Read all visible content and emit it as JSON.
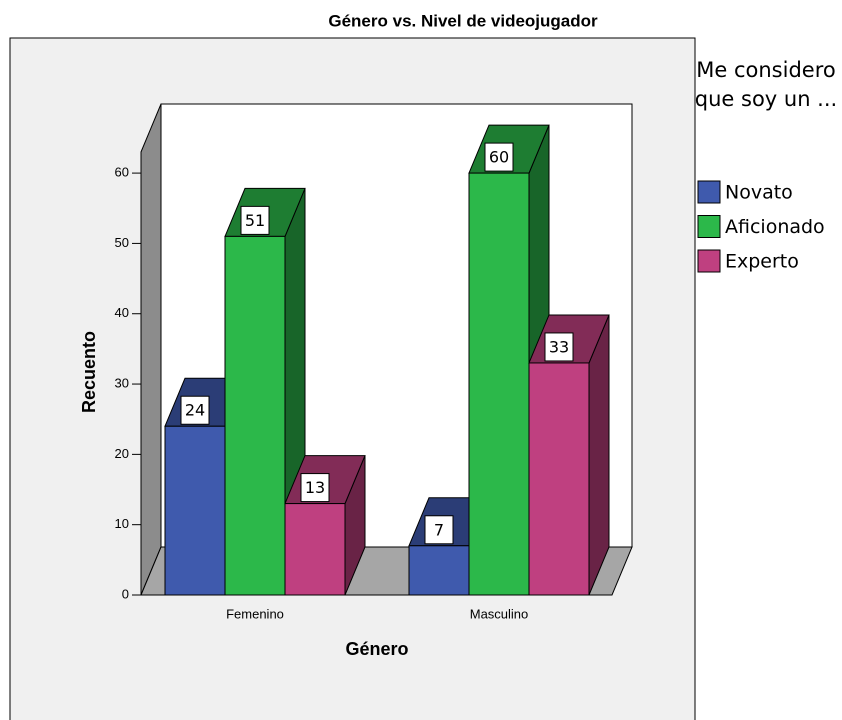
{
  "chart_data": {
    "type": "bar3d",
    "title": "Género vs. Nivel de videojugador",
    "x_label": "Género",
    "y_label": "Recuento",
    "categories": [
      "Femenino",
      "Masculino"
    ],
    "series": [
      {
        "name": "Novato",
        "color": "#3f5aad",
        "values": [
          24,
          7
        ]
      },
      {
        "name": "Aficionado",
        "color": "#2cb84a",
        "values": [
          51,
          60
        ]
      },
      {
        "name": "Experto",
        "color": "#bf4080",
        "values": [
          13,
          33
        ]
      }
    ],
    "ylim": [
      0,
      63
    ],
    "yticks": [
      0,
      10,
      20,
      30,
      40,
      50,
      60
    ],
    "legend_title": "Me considero que soy un ...",
    "legend": "right"
  }
}
